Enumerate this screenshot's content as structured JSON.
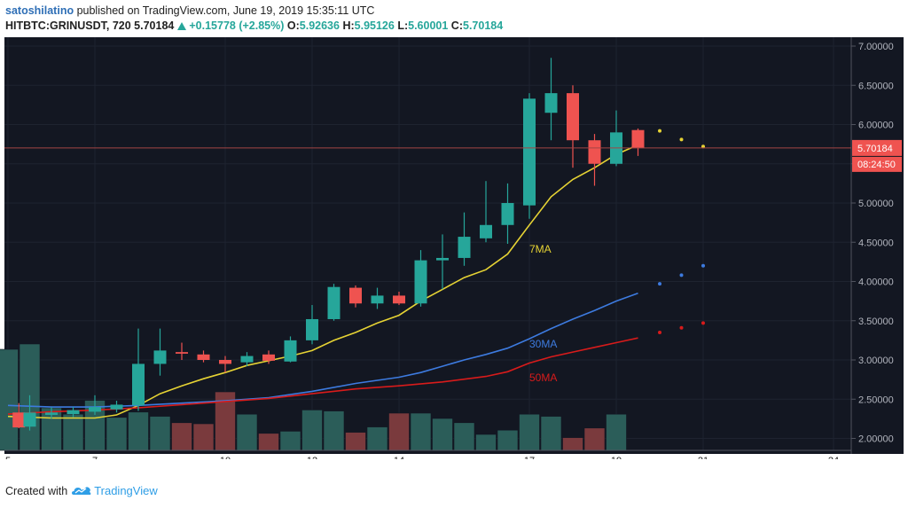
{
  "header": {
    "author": "satoshilatino",
    "published_text": "published on TradingView.com, June 19, 2019 15:35:11 UTC",
    "symbol": "HITBTC:GRINUSDT, 720",
    "last": "5.70184",
    "change": "+0.15778 (+2.85%)",
    "o_label": "O:",
    "o_value": "5.92636",
    "h_label": "H:",
    "h_value": "5.95126",
    "l_label": "L:",
    "l_value": "5.60001",
    "c_label": "C:",
    "c_value": "5.70184"
  },
  "footer": {
    "created_with": "Created with",
    "brand": "TradingView"
  },
  "colors": {
    "background": "#131722",
    "up": "#26a69a",
    "down": "#ef5350",
    "ma7": "#e6d334",
    "ma30": "#3d7be0",
    "ma50": "#d81b1b"
  },
  "chart_data": {
    "type": "candlestick",
    "title": "HITBTC:GRINUSDT, 720",
    "ylim": [
      1.8,
      7.2
    ],
    "price_axis_ticks": [
      "7.00000",
      "6.50000",
      "6.00000",
      "5.50000",
      "5.00000",
      "4.50000",
      "4.00000",
      "3.50000",
      "3.00000",
      "2.50000",
      "2.00000"
    ],
    "x_ticks": [
      {
        "label": "5",
        "t": 0
      },
      {
        "label": "7",
        "t": 4
      },
      {
        "label": "10",
        "t": 10
      },
      {
        "label": "12",
        "t": 14
      },
      {
        "label": "14",
        "t": 18
      },
      {
        "label": "17",
        "t": 24
      },
      {
        "label": "19",
        "t": 28
      },
      {
        "label": "21",
        "t": 32
      },
      {
        "label": "24",
        "t": 38
      }
    ],
    "current_price": "5.70184",
    "countdown": "08:24:50",
    "candles": [
      {
        "t": 0.5,
        "o": 2.33,
        "h": 2.45,
        "l": 2.13,
        "c": 2.14
      },
      {
        "t": 1,
        "o": 2.15,
        "h": 2.55,
        "l": 2.1,
        "c": 2.33
      },
      {
        "t": 2,
        "o": 2.3,
        "h": 2.4,
        "l": 2.25,
        "c": 2.33
      },
      {
        "t": 3,
        "o": 2.31,
        "h": 2.4,
        "l": 2.27,
        "c": 2.36
      },
      {
        "t": 4,
        "o": 2.34,
        "h": 2.55,
        "l": 2.3,
        "c": 2.4
      },
      {
        "t": 5,
        "o": 2.37,
        "h": 2.48,
        "l": 2.33,
        "c": 2.43
      },
      {
        "t": 6,
        "o": 2.42,
        "h": 3.4,
        "l": 2.35,
        "c": 2.95
      },
      {
        "t": 7,
        "o": 2.95,
        "h": 3.4,
        "l": 2.8,
        "c": 3.12
      },
      {
        "t": 8,
        "o": 3.1,
        "h": 3.22,
        "l": 3.0,
        "c": 3.08
      },
      {
        "t": 9,
        "o": 3.07,
        "h": 3.12,
        "l": 2.97,
        "c": 3.0
      },
      {
        "t": 10,
        "o": 3.0,
        "h": 3.05,
        "l": 2.84,
        "c": 2.95
      },
      {
        "t": 11,
        "o": 2.97,
        "h": 3.1,
        "l": 2.92,
        "c": 3.05
      },
      {
        "t": 12,
        "o": 3.07,
        "h": 3.12,
        "l": 2.95,
        "c": 2.99
      },
      {
        "t": 13,
        "o": 2.98,
        "h": 3.3,
        "l": 2.97,
        "c": 3.25
      },
      {
        "t": 14,
        "o": 3.25,
        "h": 3.7,
        "l": 3.2,
        "c": 3.52
      },
      {
        "t": 15,
        "o": 3.52,
        "h": 3.97,
        "l": 3.5,
        "c": 3.93
      },
      {
        "t": 16,
        "o": 3.92,
        "h": 3.95,
        "l": 3.67,
        "c": 3.72
      },
      {
        "t": 17,
        "o": 3.72,
        "h": 3.92,
        "l": 3.65,
        "c": 3.82
      },
      {
        "t": 18,
        "o": 3.82,
        "h": 3.87,
        "l": 3.7,
        "c": 3.72
      },
      {
        "t": 19,
        "o": 3.72,
        "h": 4.4,
        "l": 3.68,
        "c": 4.27
      },
      {
        "t": 20,
        "o": 4.27,
        "h": 4.6,
        "l": 3.9,
        "c": 4.3
      },
      {
        "t": 21,
        "o": 4.3,
        "h": 4.88,
        "l": 4.2,
        "c": 4.57
      },
      {
        "t": 22,
        "o": 4.55,
        "h": 5.28,
        "l": 4.5,
        "c": 4.72
      },
      {
        "t": 23,
        "o": 4.72,
        "h": 5.25,
        "l": 4.48,
        "c": 5.0
      },
      {
        "t": 24,
        "o": 4.97,
        "h": 6.4,
        "l": 4.8,
        "c": 6.33
      },
      {
        "t": 25,
        "o": 6.15,
        "h": 6.85,
        "l": 5.8,
        "c": 6.4
      },
      {
        "t": 26,
        "o": 6.4,
        "h": 6.5,
        "l": 5.45,
        "c": 5.8
      },
      {
        "t": 27,
        "o": 5.8,
        "h": 5.88,
        "l": 5.22,
        "c": 5.5
      },
      {
        "t": 28,
        "o": 5.5,
        "h": 6.18,
        "l": 5.47,
        "c": 5.9
      },
      {
        "t": 29,
        "o": 5.93,
        "h": 5.95,
        "l": 5.6,
        "c": 5.7
      }
    ],
    "volumes": [
      {
        "t": 0,
        "v": 0.95,
        "up": true
      },
      {
        "t": 1,
        "v": 1.0,
        "up": true
      },
      {
        "t": 2,
        "v": 0.4,
        "up": true
      },
      {
        "t": 3,
        "v": 0.34,
        "up": true
      },
      {
        "t": 4,
        "v": 0.47,
        "up": true
      },
      {
        "t": 5,
        "v": 0.31,
        "up": true
      },
      {
        "t": 6,
        "v": 0.36,
        "up": true
      },
      {
        "t": 7,
        "v": 0.32,
        "up": true
      },
      {
        "t": 8,
        "v": 0.26,
        "up": false
      },
      {
        "t": 9,
        "v": 0.25,
        "up": false
      },
      {
        "t": 10,
        "v": 0.55,
        "up": false
      },
      {
        "t": 11,
        "v": 0.34,
        "up": true
      },
      {
        "t": 12,
        "v": 0.16,
        "up": false
      },
      {
        "t": 13,
        "v": 0.18,
        "up": true
      },
      {
        "t": 14,
        "v": 0.38,
        "up": true
      },
      {
        "t": 15,
        "v": 0.37,
        "up": true
      },
      {
        "t": 16,
        "v": 0.17,
        "up": false
      },
      {
        "t": 17,
        "v": 0.22,
        "up": true
      },
      {
        "t": 18,
        "v": 0.35,
        "up": false
      },
      {
        "t": 19,
        "v": 0.35,
        "up": true
      },
      {
        "t": 20,
        "v": 0.3,
        "up": true
      },
      {
        "t": 21,
        "v": 0.26,
        "up": true
      },
      {
        "t": 22,
        "v": 0.15,
        "up": true
      },
      {
        "t": 23,
        "v": 0.19,
        "up": true
      },
      {
        "t": 24,
        "v": 0.34,
        "up": true
      },
      {
        "t": 25,
        "v": 0.32,
        "up": true
      },
      {
        "t": 26,
        "v": 0.12,
        "up": false
      },
      {
        "t": 27,
        "v": 0.21,
        "up": false
      },
      {
        "t": 28,
        "v": 0.34,
        "up": true
      }
    ],
    "series": [
      {
        "name": "7MA",
        "color": "#e6d334",
        "label_t": 24,
        "label_p": 4.37,
        "points": [
          [
            0,
            2.28
          ],
          [
            2,
            2.26
          ],
          [
            4,
            2.26
          ],
          [
            5,
            2.3
          ],
          [
            6,
            2.42
          ],
          [
            7,
            2.57
          ],
          [
            8,
            2.67
          ],
          [
            9,
            2.76
          ],
          [
            10,
            2.84
          ],
          [
            11,
            2.93
          ],
          [
            12,
            2.99
          ],
          [
            13,
            3.05
          ],
          [
            14,
            3.12
          ],
          [
            15,
            3.25
          ],
          [
            16,
            3.35
          ],
          [
            17,
            3.47
          ],
          [
            18,
            3.57
          ],
          [
            19,
            3.75
          ],
          [
            20,
            3.9
          ],
          [
            21,
            4.05
          ],
          [
            22,
            4.15
          ],
          [
            23,
            4.35
          ],
          [
            24,
            4.72
          ],
          [
            25,
            5.08
          ],
          [
            26,
            5.3
          ],
          [
            27,
            5.45
          ],
          [
            28,
            5.62
          ],
          [
            29,
            5.74
          ]
        ],
        "projection": [
          [
            30,
            5.92
          ],
          [
            31,
            5.81
          ],
          [
            32,
            5.72
          ]
        ]
      },
      {
        "name": "30MA",
        "color": "#3d7be0",
        "label_t": 24,
        "label_p": 3.16,
        "points": [
          [
            0,
            2.42
          ],
          [
            2,
            2.4
          ],
          [
            4,
            2.4
          ],
          [
            6,
            2.42
          ],
          [
            8,
            2.45
          ],
          [
            10,
            2.48
          ],
          [
            12,
            2.52
          ],
          [
            14,
            2.6
          ],
          [
            16,
            2.7
          ],
          [
            18,
            2.78
          ],
          [
            19,
            2.84
          ],
          [
            20,
            2.92
          ],
          [
            21,
            3.0
          ],
          [
            22,
            3.07
          ],
          [
            23,
            3.15
          ],
          [
            24,
            3.27
          ],
          [
            25,
            3.4
          ],
          [
            26,
            3.52
          ],
          [
            27,
            3.63
          ],
          [
            28,
            3.75
          ],
          [
            29,
            3.85
          ]
        ],
        "projection": [
          [
            30,
            3.97
          ],
          [
            31,
            4.08
          ],
          [
            32,
            4.2
          ]
        ]
      },
      {
        "name": "50MA",
        "color": "#d81b1b",
        "label_t": 24,
        "label_p": 2.73,
        "points": [
          [
            0,
            2.31
          ],
          [
            2,
            2.34
          ],
          [
            4,
            2.36
          ],
          [
            6,
            2.39
          ],
          [
            8,
            2.43
          ],
          [
            10,
            2.47
          ],
          [
            12,
            2.51
          ],
          [
            14,
            2.57
          ],
          [
            16,
            2.63
          ],
          [
            18,
            2.67
          ],
          [
            20,
            2.72
          ],
          [
            22,
            2.79
          ],
          [
            23,
            2.85
          ],
          [
            24,
            2.96
          ],
          [
            25,
            3.04
          ],
          [
            26,
            3.1
          ],
          [
            27,
            3.16
          ],
          [
            28,
            3.22
          ],
          [
            29,
            3.28
          ]
        ],
        "projection": [
          [
            30,
            3.35
          ],
          [
            31,
            3.41
          ],
          [
            32,
            3.47
          ]
        ]
      }
    ]
  }
}
